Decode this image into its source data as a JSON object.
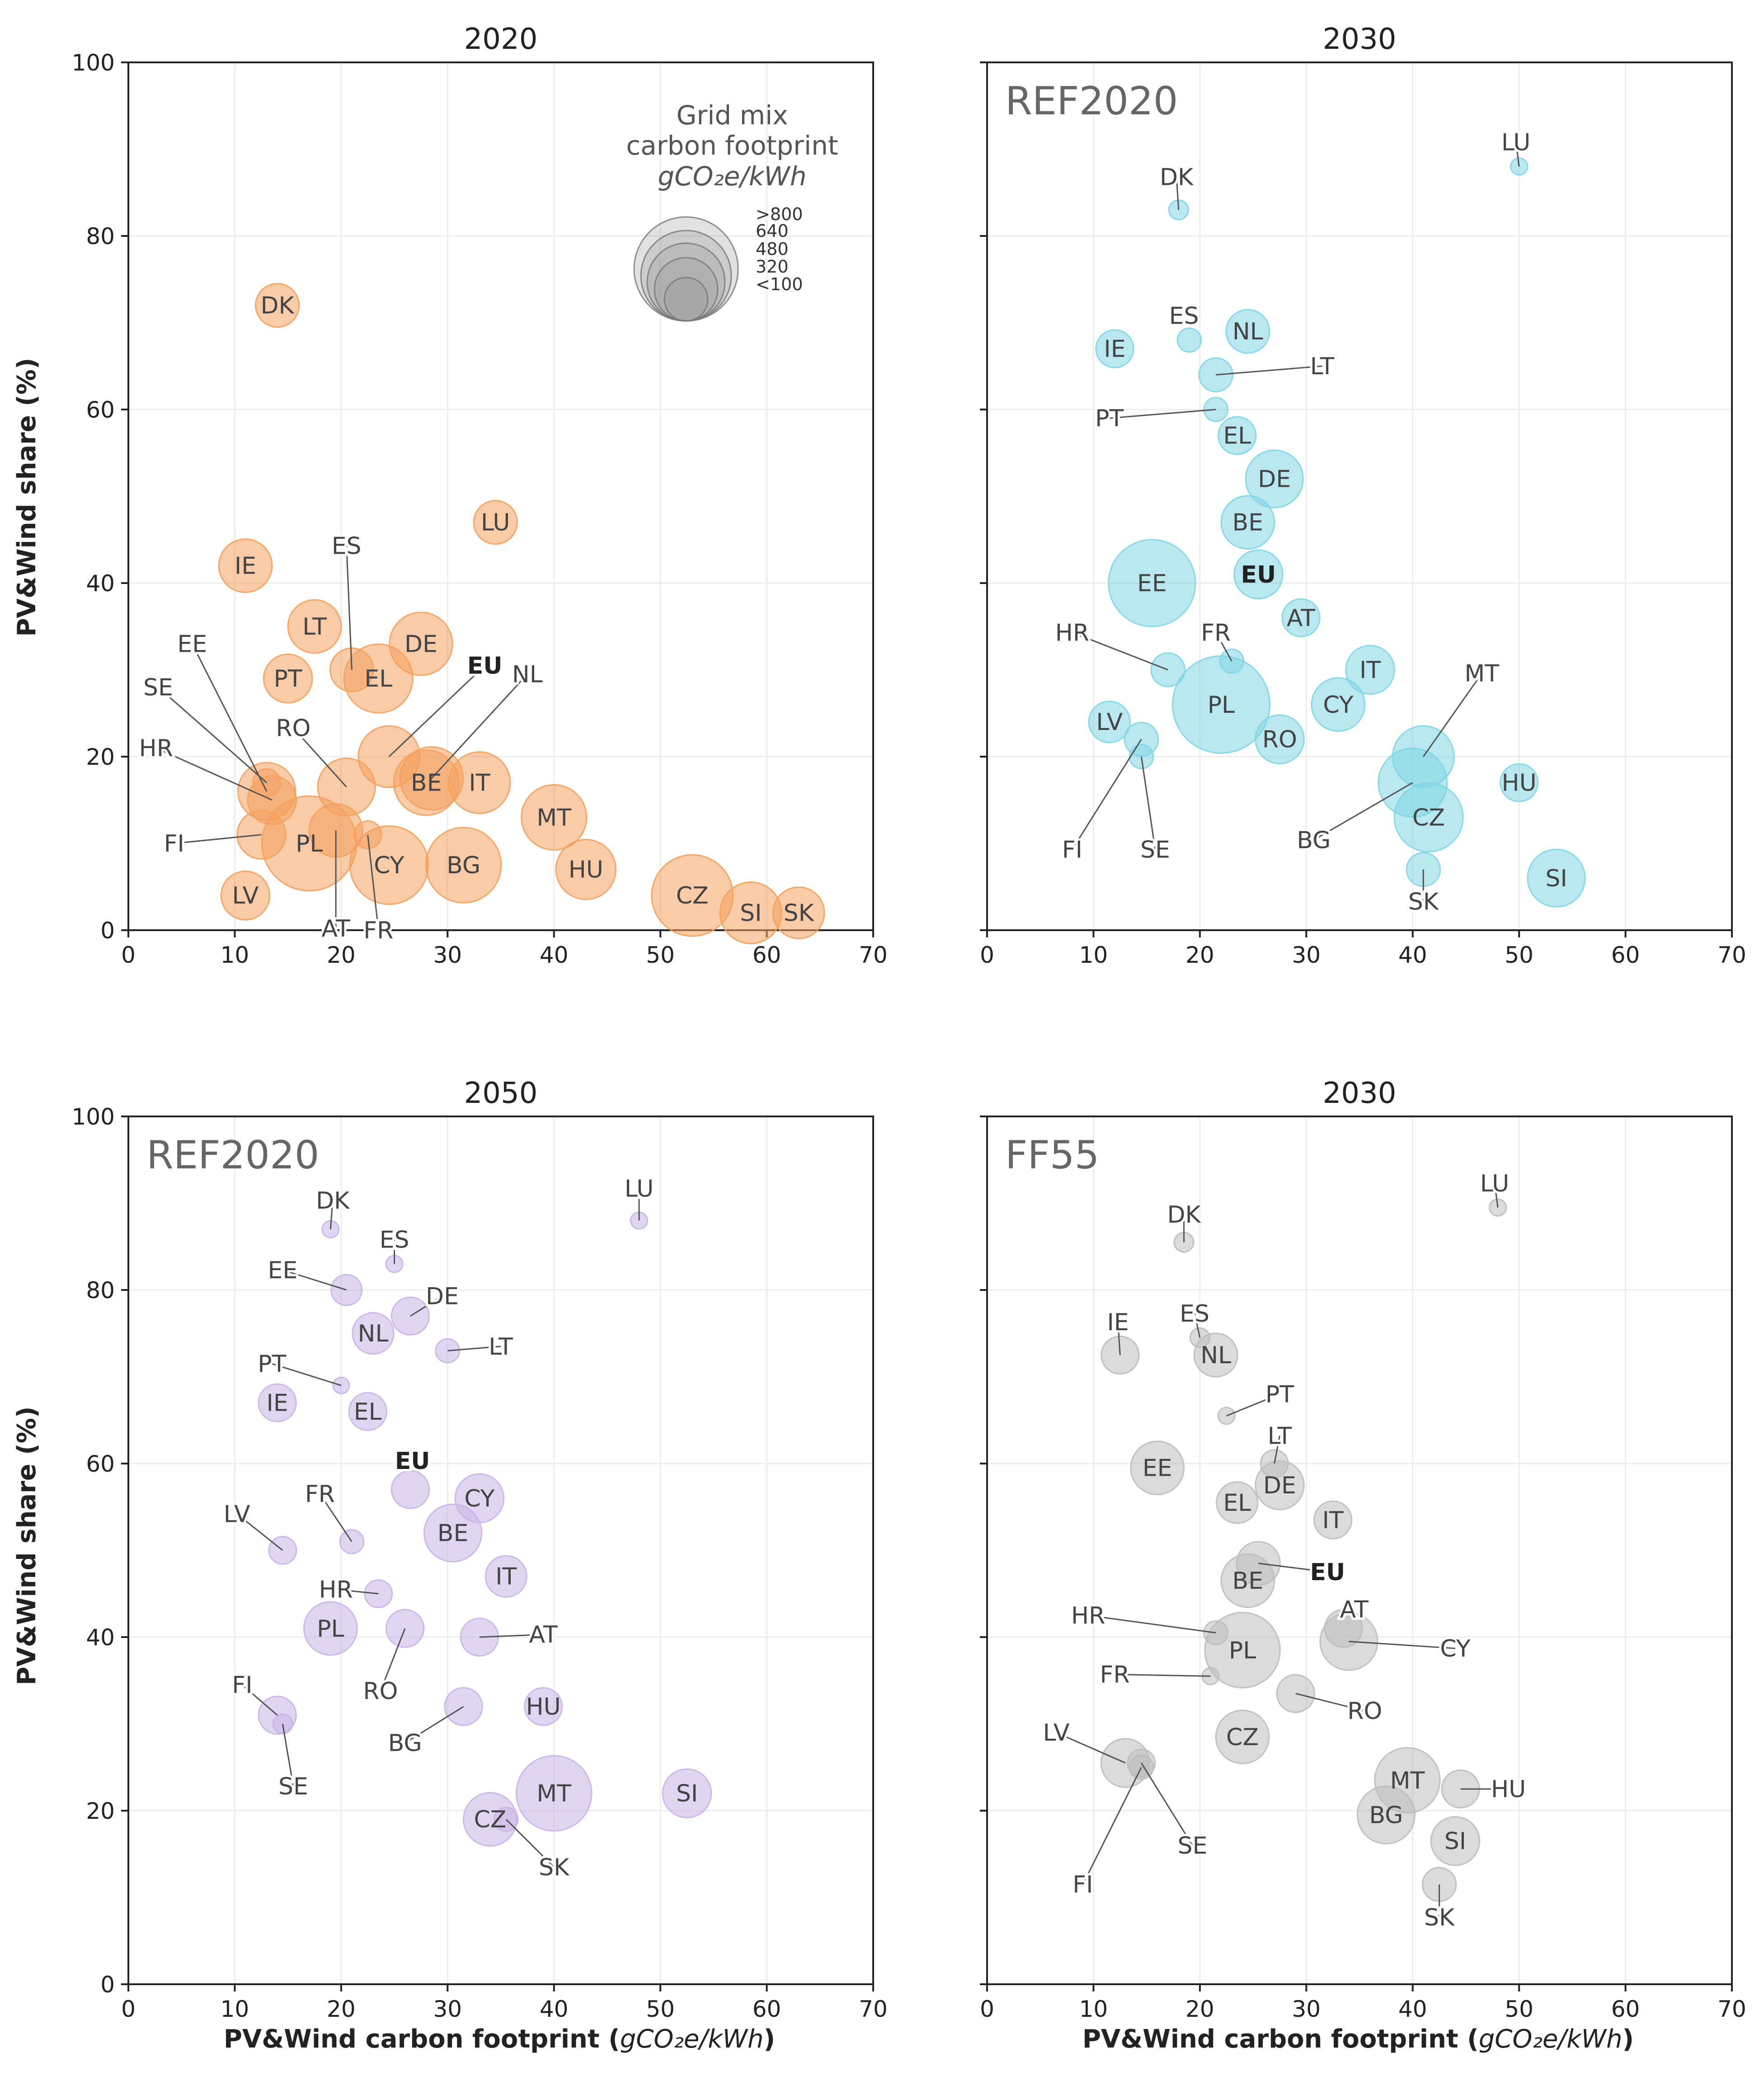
{
  "figure": {
    "ylabel": "PV&Wind share (%)",
    "xlabel": "PV&Wind carbon footprint (gCO₂e/kWh)",
    "xlabel_parts": [
      "PV&Wind carbon footprint (",
      "gCO₂e/kWh",
      ")"
    ],
    "legend": {
      "title": [
        "Grid mix",
        "carbon footprint",
        "gCO₂e/kWh"
      ],
      "items": [
        ">800",
        "640",
        "480",
        "320",
        "<100"
      ]
    }
  },
  "chart_data": [
    {
      "type": "scatter",
      "title": "2020",
      "scenario": "",
      "color": "#f4a15c",
      "xlim": [
        0,
        70
      ],
      "ylim": [
        0,
        100
      ],
      "xticks": [
        "0",
        "10",
        "20",
        "30",
        "40",
        "50",
        "60",
        "70"
      ],
      "yticks": [
        "0",
        "20",
        "40",
        "60",
        "80",
        "100"
      ],
      "xlabel": "",
      "ylabel": "PV&Wind share (%)",
      "legend": "top-right",
      "points": [
        {
          "label": "DK",
          "x": 14,
          "y": 72,
          "gi": 200
        },
        {
          "label": "LU",
          "x": 34.5,
          "y": 47,
          "gi": 200
        },
        {
          "label": "IE",
          "x": 11,
          "y": 42,
          "gi": 300
        },
        {
          "label": "ES",
          "x": 21,
          "y": 30,
          "gi": 200,
          "lx": 20.5,
          "ly": 44.3
        },
        {
          "label": "LT",
          "x": 17.5,
          "y": 35,
          "gi": 300
        },
        {
          "label": "DE",
          "x": 27.5,
          "y": 33,
          "gi": 420
        },
        {
          "label": "PT",
          "x": 15,
          "y": 29,
          "gi": 250
        },
        {
          "label": "EL",
          "x": 23.5,
          "y": 29,
          "gi": 500
        },
        {
          "label": "EU",
          "x": 24.5,
          "y": 20,
          "gi": 400,
          "lx": 33.5,
          "ly": 30.5,
          "bold": true
        },
        {
          "label": "NL",
          "x": 28.5,
          "y": 17.5,
          "gi": 420,
          "lx": 37.5,
          "ly": 29.5
        },
        {
          "label": "EE",
          "x": 13,
          "y": 16,
          "gi": 350,
          "lx": 6,
          "ly": 33
        },
        {
          "label": "SE",
          "x": 13,
          "y": 17,
          "gi": 80,
          "lx": 2.8,
          "ly": 28
        },
        {
          "label": "RO",
          "x": 20.5,
          "y": 16.5,
          "gi": 350,
          "lx": 15.5,
          "ly": 23.3
        },
        {
          "label": "HR",
          "x": 13.5,
          "y": 15,
          "gi": 250,
          "lx": 2.6,
          "ly": 21
        },
        {
          "label": "BE",
          "x": 28,
          "y": 17,
          "gi": 450
        },
        {
          "label": "IT",
          "x": 33,
          "y": 17,
          "gi": 400
        },
        {
          "label": "FI",
          "x": 12.5,
          "y": 11,
          "gi": 250,
          "lx": 4.3,
          "ly": 10
        },
        {
          "label": "PL",
          "x": 17,
          "y": 10,
          "gi": 950
        },
        {
          "label": "AT",
          "x": 19.5,
          "y": 11.5,
          "gi": 300,
          "lx": 19.5,
          "ly": 0.2
        },
        {
          "label": "FR",
          "x": 22.5,
          "y": 11,
          "gi": 80,
          "lx": 23.5,
          "ly": 0
        },
        {
          "label": "CY",
          "x": 24.5,
          "y": 7.5,
          "gi": 650
        },
        {
          "label": "BG",
          "x": 31.5,
          "y": 7.5,
          "gi": 600
        },
        {
          "label": "MT",
          "x": 40,
          "y": 13,
          "gi": 450
        },
        {
          "label": "HU",
          "x": 43,
          "y": 7,
          "gi": 380
        },
        {
          "label": "LV",
          "x": 11,
          "y": 4,
          "gi": 250
        },
        {
          "label": "CZ",
          "x": 53,
          "y": 4,
          "gi": 700
        },
        {
          "label": "SI",
          "x": 58.5,
          "y": 2,
          "gi": 400
        },
        {
          "label": "SK",
          "x": 63,
          "y": 2,
          "gi": 280
        }
      ]
    },
    {
      "type": "scatter",
      "title": "2030",
      "scenario": "REF2020",
      "color": "#7fd6e3",
      "xlim": [
        0,
        70
      ],
      "ylim": [
        0,
        100
      ],
      "xticks": [
        "0",
        "10",
        "20",
        "30",
        "40",
        "50",
        "60",
        "70"
      ],
      "yticks": [],
      "xlabel": "",
      "ylabel": "",
      "points": [
        {
          "label": "LU",
          "x": 50,
          "y": 88,
          "gi": 30,
          "lx": 49.7,
          "ly": 90.8
        },
        {
          "label": "DK",
          "x": 18,
          "y": 83,
          "gi": 40,
          "lx": 17.8,
          "ly": 86.8
        },
        {
          "label": "NL",
          "x": 24.5,
          "y": 69,
          "gi": 200
        },
        {
          "label": "ES",
          "x": 19,
          "y": 68,
          "gi": 60,
          "lx": 18.5,
          "ly": 70.8
        },
        {
          "label": "IE",
          "x": 12,
          "y": 67,
          "gi": 150
        },
        {
          "label": "LT",
          "x": 21.5,
          "y": 64,
          "gi": 120,
          "lx": 31.5,
          "ly": 65
        },
        {
          "label": "PT",
          "x": 21.5,
          "y": 60,
          "gi": 60,
          "lx": 11.5,
          "ly": 59
        },
        {
          "label": "EL",
          "x": 23.5,
          "y": 57,
          "gi": 150
        },
        {
          "label": "DE",
          "x": 27,
          "y": 52,
          "gi": 350
        },
        {
          "label": "BE",
          "x": 24.5,
          "y": 47,
          "gi": 300
        },
        {
          "label": "EU",
          "x": 25.5,
          "y": 41,
          "gi": 250,
          "bold": true
        },
        {
          "label": "EE",
          "x": 15.5,
          "y": 40,
          "gi": 800
        },
        {
          "label": "AT",
          "x": 29.5,
          "y": 36,
          "gi": 150
        },
        {
          "label": "FR",
          "x": 23,
          "y": 31,
          "gi": 60,
          "lx": 21.5,
          "ly": 34.3
        },
        {
          "label": "HR",
          "x": 17,
          "y": 30,
          "gi": 120,
          "lx": 8,
          "ly": 34.3
        },
        {
          "label": "IT",
          "x": 36,
          "y": 30,
          "gi": 250
        },
        {
          "label": "MT",
          "x": 41,
          "y": 20,
          "gi": 400,
          "lx": 46.5,
          "ly": 29.6
        },
        {
          "label": "PL",
          "x": 22,
          "y": 26,
          "gi": 1000
        },
        {
          "label": "CY",
          "x": 33,
          "y": 26,
          "gi": 300
        },
        {
          "label": "LV",
          "x": 11.5,
          "y": 24,
          "gi": 180
        },
        {
          "label": "SE",
          "x": 14.5,
          "y": 20,
          "gi": 60,
          "lx": 15.8,
          "ly": 9.3
        },
        {
          "label": "FI",
          "x": 14.5,
          "y": 22,
          "gi": 120,
          "lx": 8,
          "ly": 9.3
        },
        {
          "label": "RO",
          "x": 27.5,
          "y": 22,
          "gi": 250
        },
        {
          "label": "HU",
          "x": 50,
          "y": 17,
          "gi": 150
        },
        {
          "label": "BG",
          "x": 40,
          "y": 17,
          "gi": 500,
          "lx": 30.7,
          "ly": 10.4
        },
        {
          "label": "CZ",
          "x": 41.5,
          "y": 13,
          "gi": 500
        },
        {
          "label": "SK",
          "x": 41,
          "y": 7,
          "gi": 120,
          "lx": 41,
          "ly": 3.3
        },
        {
          "label": "SI",
          "x": 53.5,
          "y": 6,
          "gi": 350
        }
      ]
    },
    {
      "type": "scatter",
      "title": "2050",
      "scenario": "REF2020",
      "color": "#c9b4e6",
      "xlim": [
        0,
        70
      ],
      "ylim": [
        0,
        100
      ],
      "xticks": [
        "0",
        "10",
        "20",
        "30",
        "40",
        "50",
        "60",
        "70"
      ],
      "yticks": [
        "0",
        "20",
        "40",
        "60",
        "80",
        "100"
      ],
      "xlabel": "PV&Wind carbon footprint",
      "ylabel": "PV&Wind share (%)",
      "points": [
        {
          "label": "LU",
          "x": 48,
          "y": 88,
          "gi": 30,
          "lx": 48,
          "ly": 91.7
        },
        {
          "label": "DK",
          "x": 19,
          "y": 87,
          "gi": 30,
          "lx": 19.2,
          "ly": 90.3
        },
        {
          "label": "ES",
          "x": 25,
          "y": 83,
          "gi": 30,
          "lx": 25,
          "ly": 85.8
        },
        {
          "label": "EE",
          "x": 20.5,
          "y": 80,
          "gi": 100,
          "lx": 14.5,
          "ly": 82.3
        },
        {
          "label": "DE",
          "x": 26.5,
          "y": 77,
          "gi": 150,
          "lx": 29.5,
          "ly": 79.3
        },
        {
          "label": "NL",
          "x": 23,
          "y": 75,
          "gi": 180
        },
        {
          "label": "LT",
          "x": 30,
          "y": 73,
          "gi": 60,
          "lx": 35,
          "ly": 73.5
        },
        {
          "label": "PT",
          "x": 20,
          "y": 69,
          "gi": 20,
          "lx": 13.5,
          "ly": 71.5
        },
        {
          "label": "IE",
          "x": 14,
          "y": 67,
          "gi": 150
        },
        {
          "label": "EL",
          "x": 22.5,
          "y": 66,
          "gi": 150
        },
        {
          "label": "EU",
          "x": 26.5,
          "y": 57,
          "gi": 150,
          "lx": 26.7,
          "ly": 60.3,
          "bold": true
        },
        {
          "label": "CY",
          "x": 33,
          "y": 56,
          "gi": 250
        },
        {
          "label": "FR",
          "x": 21,
          "y": 51,
          "gi": 60,
          "lx": 18,
          "ly": 56.5
        },
        {
          "label": "BE",
          "x": 30.5,
          "y": 52,
          "gi": 350
        },
        {
          "label": "LV",
          "x": 14.5,
          "y": 50,
          "gi": 80,
          "lx": 10.2,
          "ly": 54.2
        },
        {
          "label": "IT",
          "x": 35.5,
          "y": 47,
          "gi": 180
        },
        {
          "label": "HR",
          "x": 23.5,
          "y": 45,
          "gi": 80,
          "lx": 19.5,
          "ly": 45.5
        },
        {
          "label": "PL",
          "x": 19,
          "y": 41,
          "gi": 300
        },
        {
          "label": "RO",
          "x": 26,
          "y": 41,
          "gi": 150,
          "lx": 23.7,
          "ly": 33.8
        },
        {
          "label": "AT",
          "x": 33,
          "y": 40,
          "gi": 150,
          "lx": 39,
          "ly": 40.3
        },
        {
          "label": "FI",
          "x": 14,
          "y": 31,
          "gi": 150,
          "lx": 10.7,
          "ly": 34.5
        },
        {
          "label": "SE",
          "x": 14.5,
          "y": 30,
          "gi": 40,
          "lx": 15.5,
          "ly": 22.8
        },
        {
          "label": "BG",
          "x": 31.5,
          "y": 32,
          "gi": 150,
          "lx": 26,
          "ly": 27.8
        },
        {
          "label": "HU",
          "x": 39,
          "y": 32,
          "gi": 150
        },
        {
          "label": "MT",
          "x": 40,
          "y": 22,
          "gi": 600
        },
        {
          "label": "SI",
          "x": 52.5,
          "y": 22,
          "gi": 250
        },
        {
          "label": "CZ",
          "x": 34,
          "y": 19,
          "gi": 300
        },
        {
          "label": "SK",
          "x": 35.5,
          "y": 19,
          "gi": 60,
          "lx": 40,
          "ly": 13.5
        }
      ]
    },
    {
      "type": "scatter",
      "title": "2030",
      "scenario": "FF55",
      "color": "#bdbdbd",
      "xlim": [
        0,
        70
      ],
      "ylim": [
        0,
        100
      ],
      "xticks": [
        "0",
        "10",
        "20",
        "30",
        "40",
        "50",
        "60",
        "70"
      ],
      "yticks": [],
      "xlabel": "PV&Wind carbon footprint",
      "ylabel": "",
      "points": [
        {
          "label": "LU",
          "x": 48,
          "y": 89.5,
          "gi": 30,
          "lx": 47.7,
          "ly": 92.3
        },
        {
          "label": "DK",
          "x": 18.5,
          "y": 85.5,
          "gi": 40,
          "lx": 18.5,
          "ly": 88.7
        },
        {
          "label": "ES",
          "x": 20,
          "y": 74.5,
          "gi": 40,
          "lx": 19.5,
          "ly": 77.3
        },
        {
          "label": "IE",
          "x": 12.5,
          "y": 72.5,
          "gi": 150,
          "lx": 12.3,
          "ly": 76.3
        },
        {
          "label": "NL",
          "x": 21.5,
          "y": 72.5,
          "gi": 200
        },
        {
          "label": "PT",
          "x": 22.5,
          "y": 65.5,
          "gi": 30,
          "lx": 27.5,
          "ly": 68
        },
        {
          "label": "LT",
          "x": 27,
          "y": 60,
          "gi": 80,
          "lx": 27.5,
          "ly": 63.2
        },
        {
          "label": "EE",
          "x": 16,
          "y": 59.5,
          "gi": 300
        },
        {
          "label": "DE",
          "x": 27.5,
          "y": 57.5,
          "gi": 250
        },
        {
          "label": "EL",
          "x": 23.5,
          "y": 55.5,
          "gi": 180
        },
        {
          "label": "IT",
          "x": 32.5,
          "y": 53.5,
          "gi": 150
        },
        {
          "label": "EU",
          "x": 25.5,
          "y": 48.5,
          "gi": 200,
          "lx": 32,
          "ly": 47.5,
          "bold": true
        },
        {
          "label": "BE",
          "x": 24.5,
          "y": 46.5,
          "gi": 300
        },
        {
          "label": "AT",
          "x": 33.5,
          "y": 41,
          "gi": 150,
          "lx": 34.5,
          "ly": 43.2
        },
        {
          "label": "HR",
          "x": 21.5,
          "y": 40.5,
          "gi": 60,
          "lx": 9.5,
          "ly": 42.5
        },
        {
          "label": "CY",
          "x": 34,
          "y": 39.5,
          "gi": 350,
          "lx": 44,
          "ly": 38.7
        },
        {
          "label": "PL",
          "x": 24,
          "y": 38.5,
          "gi": 600
        },
        {
          "label": "FR",
          "x": 21,
          "y": 35.5,
          "gi": 30,
          "lx": 12,
          "ly": 35.7
        },
        {
          "label": "RO",
          "x": 29,
          "y": 33.5,
          "gi": 150,
          "lx": 35.5,
          "ly": 31.5
        },
        {
          "label": "CZ",
          "x": 24,
          "y": 28.5,
          "gi": 300
        },
        {
          "label": "LV",
          "x": 13,
          "y": 25.5,
          "gi": 250,
          "lx": 6.5,
          "ly": 29
        },
        {
          "label": "SE",
          "x": 14.5,
          "y": 25.5,
          "gi": 80,
          "lx": 19.3,
          "ly": 16
        },
        {
          "label": "FI",
          "x": 14.5,
          "y": 25,
          "gi": 60,
          "lx": 9,
          "ly": 11.5
        },
        {
          "label": "MT",
          "x": 39.5,
          "y": 23.5,
          "gi": 450
        },
        {
          "label": "HU",
          "x": 44.5,
          "y": 22.5,
          "gi": 150,
          "lx": 49,
          "ly": 22.5
        },
        {
          "label": "BG",
          "x": 37.5,
          "y": 19.5,
          "gi": 350
        },
        {
          "label": "SI",
          "x": 44,
          "y": 16.5,
          "gi": 250
        },
        {
          "label": "SK",
          "x": 42.5,
          "y": 11.5,
          "gi": 120,
          "lx": 42.5,
          "ly": 7.7
        }
      ]
    }
  ]
}
